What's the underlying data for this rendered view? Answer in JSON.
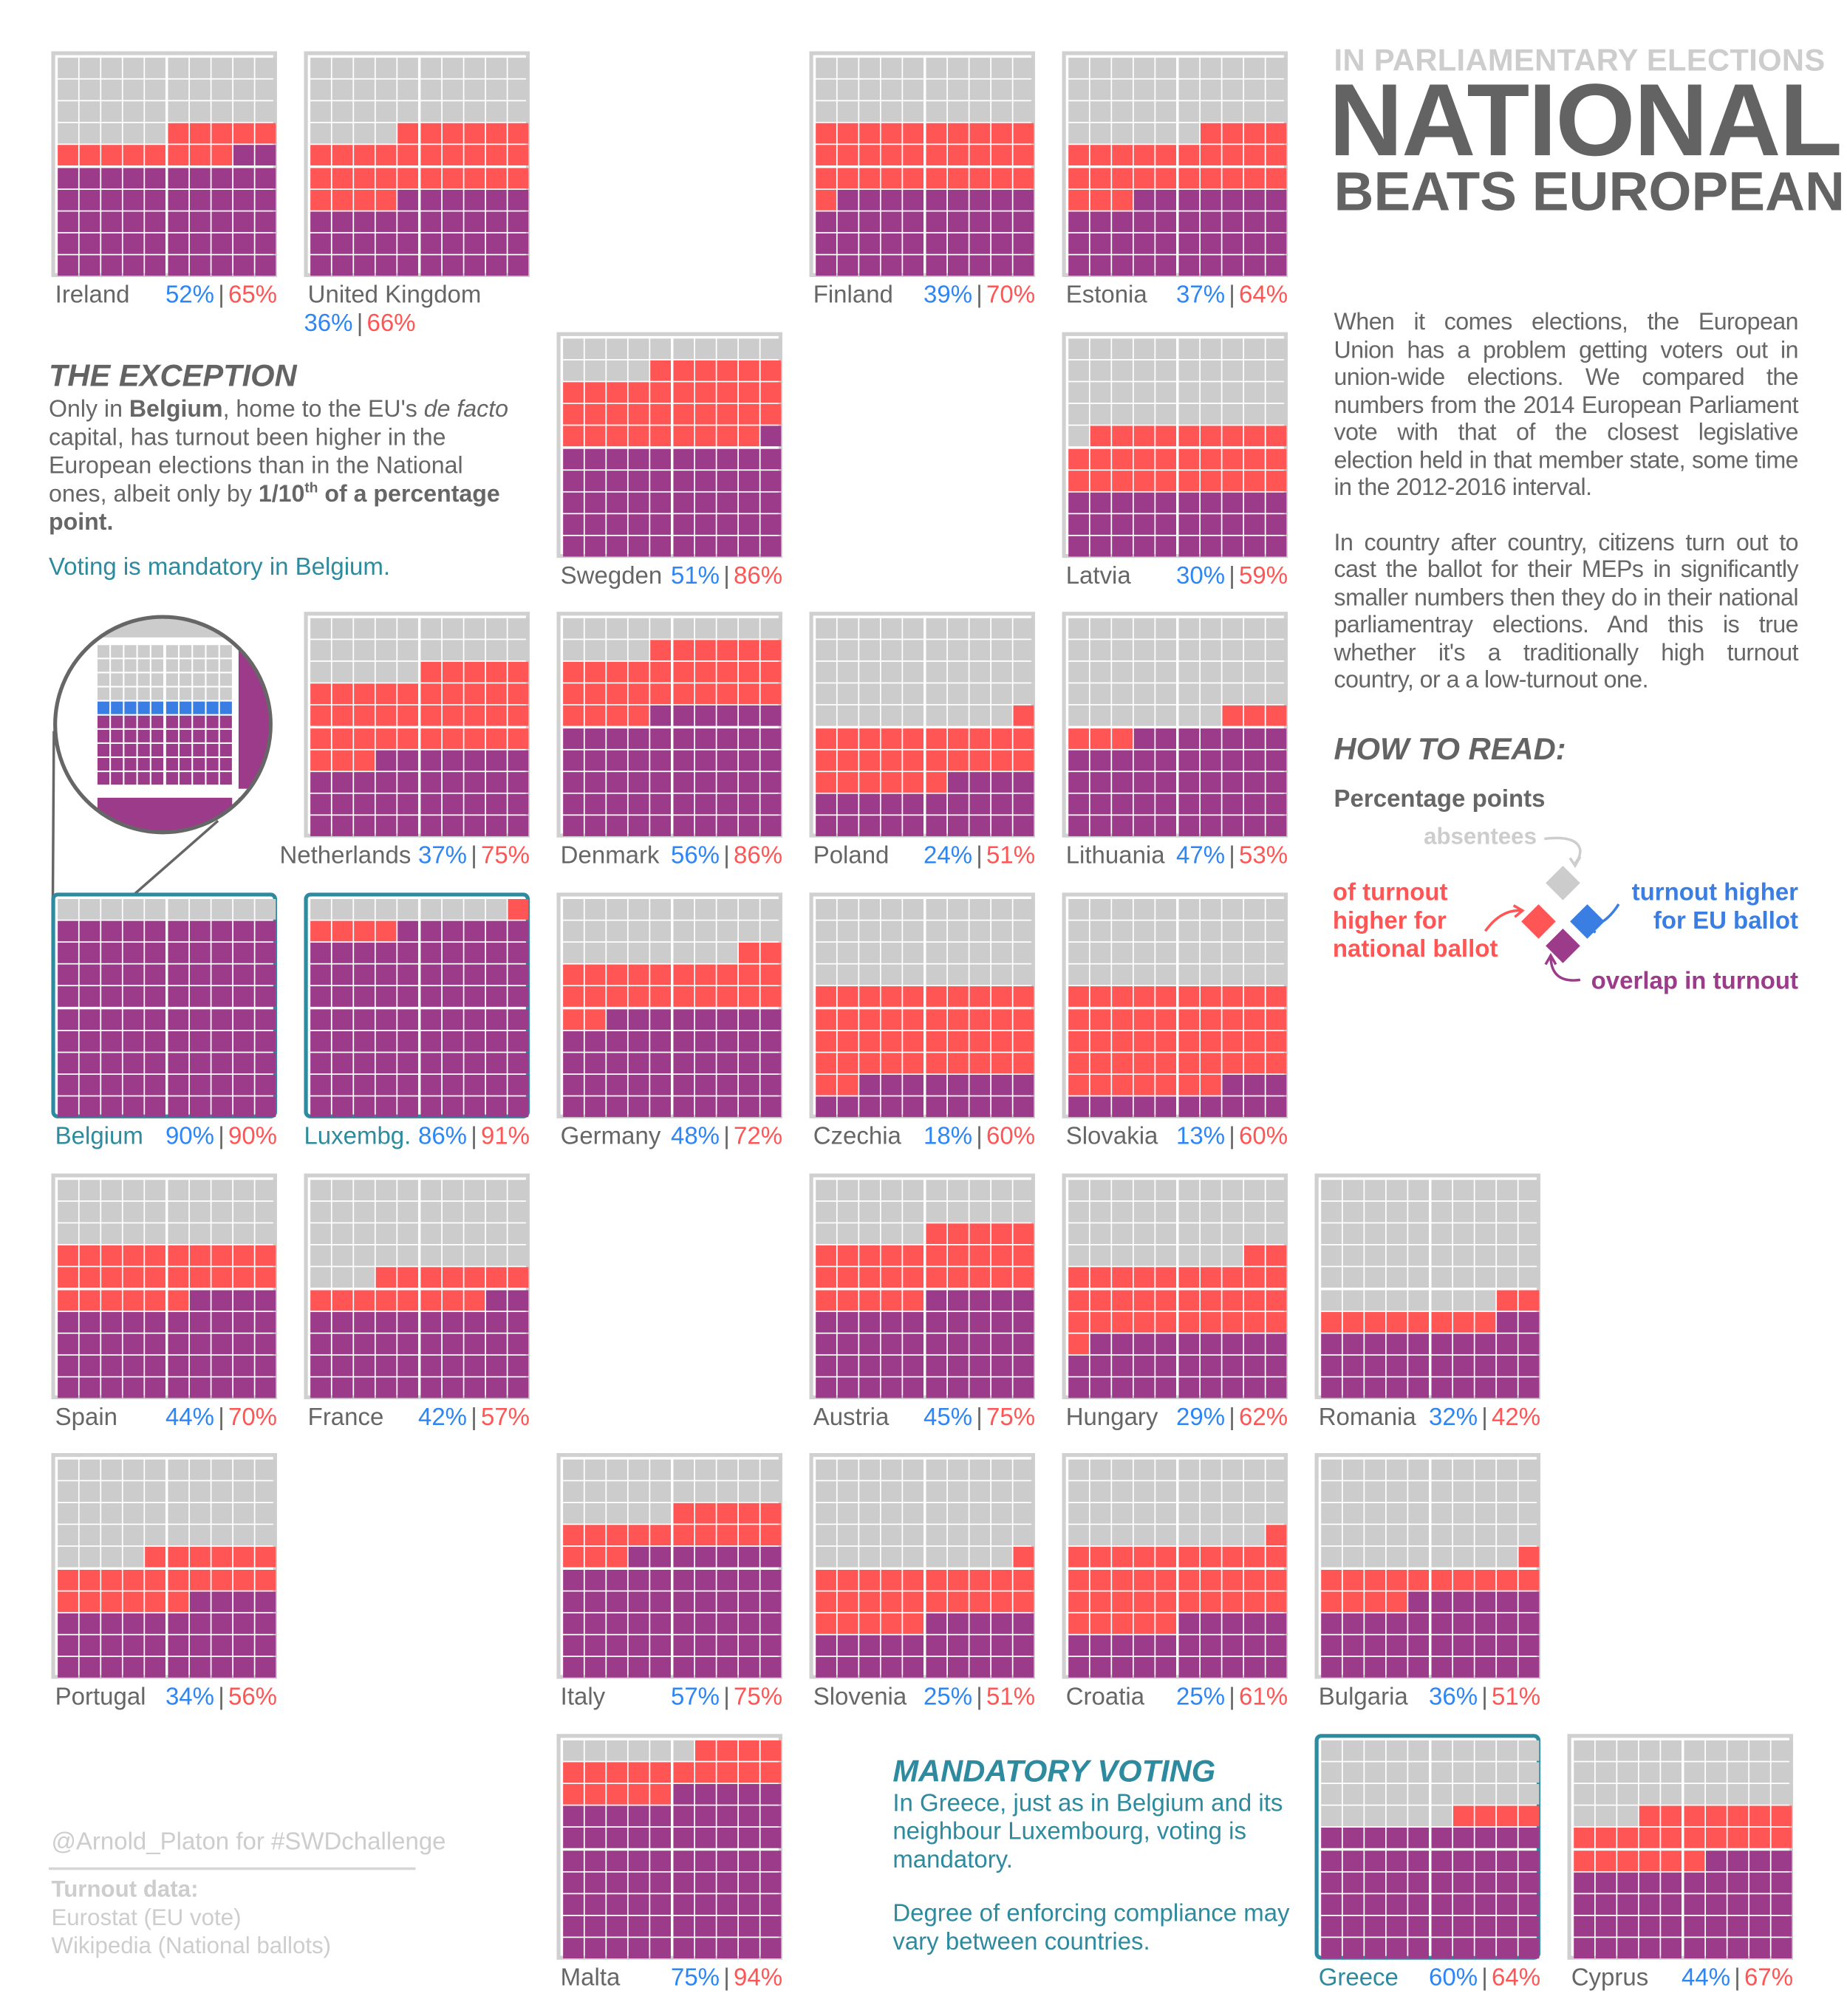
{
  "header": {
    "kicker": "IN PARLIAMENTARY ELECTIONS",
    "title_line1": "NATIONAL",
    "title_line2": "BEATS EUROPEAN"
  },
  "intro": {
    "p1": "When it comes elections, the European Union has a problem getting voters out in union-wide elections. We compared the numbers from the 2014 European Parliament vote with that of the closest legislative election held in that member state, some time in the 2012-2016 interval.",
    "p2": "In country after country, citizens turn out to cast the ballot for their MEPs in significantly smaller numbers then they do in their national parliamentray elections. And this is true whether it's a traditionally high turnout country, or a a low-turnout one."
  },
  "how_to_read": {
    "heading": "HOW TO READ:",
    "subheading": "Percentage points",
    "absentees": "absentees",
    "national_higher": [
      "of turnout",
      "higher for",
      "national ballot"
    ],
    "eu_higher": [
      "turnout higher",
      "for EU ballot"
    ],
    "overlap": "overlap in turnout"
  },
  "exception": {
    "heading": "THE EXCEPTION",
    "t1": "Only in ",
    "t2": "Belgium",
    "t3": ", home to the EU's ",
    "t4": "de facto",
    "t5": " capital, has turnout been higher in the European elections than in the National ones, albeit only by ",
    "t6": "1/10",
    "t7": "th",
    "t8": " of a percentage point.",
    "note": "Voting is mandatory in Belgium."
  },
  "mandatory": {
    "heading": "MANDATORY VOTING",
    "p1": "In Greece, just as in Belgium and its neighbour Luxembourg, voting is mandatory.",
    "p2": "Degree of enforcing compliance may vary between countries."
  },
  "footer": {
    "credit": "@Arnold_Platon for #SWDchallenge",
    "sources_heading": "Turnout data:",
    "source1": "Eurostat (EU vote)",
    "source2": "Wikipedia (National ballots)"
  },
  "colors": {
    "absentees": "#cccccc",
    "national_higher": "#ff5555",
    "eu_higher": "#3a7de3",
    "overlap": "#9c3b8a",
    "mandatory": "#2e8a9e",
    "eu_text": "#2e86f5"
  },
  "chart_data": {
    "type": "waffle",
    "units": "percent turnout",
    "separator": "|",
    "countries": [
      {
        "name": "Ireland",
        "eu": 52,
        "national": 65,
        "mandatory": false
      },
      {
        "name": "United Kingdom",
        "eu": 36,
        "national": 66,
        "mandatory": false
      },
      {
        "name": "Finland",
        "eu": 39,
        "national": 70,
        "mandatory": false
      },
      {
        "name": "Estonia",
        "eu": 37,
        "national": 64,
        "mandatory": false
      },
      {
        "name": "Swegden",
        "eu": 51,
        "national": 86,
        "mandatory": false
      },
      {
        "name": "Latvia",
        "eu": 30,
        "national": 59,
        "mandatory": false
      },
      {
        "name": "Netherlands",
        "eu": 37,
        "national": 75,
        "mandatory": false
      },
      {
        "name": "Denmark",
        "eu": 56,
        "national": 86,
        "mandatory": false
      },
      {
        "name": "Poland",
        "eu": 24,
        "national": 51,
        "mandatory": false
      },
      {
        "name": "Lithuania",
        "eu": 47,
        "national": 53,
        "mandatory": false
      },
      {
        "name": "Belgium",
        "eu": 90,
        "national": 90,
        "mandatory": true
      },
      {
        "name": "Luxembg.",
        "eu": 86,
        "national": 91,
        "mandatory": true
      },
      {
        "name": "Germany",
        "eu": 48,
        "national": 72,
        "mandatory": false
      },
      {
        "name": "Czechia",
        "eu": 18,
        "national": 60,
        "mandatory": false
      },
      {
        "name": "Slovakia",
        "eu": 13,
        "national": 60,
        "mandatory": false
      },
      {
        "name": "Spain",
        "eu": 44,
        "national": 70,
        "mandatory": false
      },
      {
        "name": "France",
        "eu": 42,
        "national": 57,
        "mandatory": false
      },
      {
        "name": "Austria",
        "eu": 45,
        "national": 75,
        "mandatory": false
      },
      {
        "name": "Hungary",
        "eu": 29,
        "national": 62,
        "mandatory": false
      },
      {
        "name": "Romania",
        "eu": 32,
        "national": 42,
        "mandatory": false
      },
      {
        "name": "Portugal",
        "eu": 34,
        "national": 56,
        "mandatory": false
      },
      {
        "name": "Italy",
        "eu": 57,
        "national": 75,
        "mandatory": false
      },
      {
        "name": "Slovenia",
        "eu": 25,
        "national": 51,
        "mandatory": false
      },
      {
        "name": "Croatia",
        "eu": 25,
        "national": 61,
        "mandatory": false
      },
      {
        "name": "Bulgaria",
        "eu": 36,
        "national": 51,
        "mandatory": false
      },
      {
        "name": "Malta",
        "eu": 75,
        "national": 94,
        "mandatory": false
      },
      {
        "name": "Greece",
        "eu": 60,
        "national": 64,
        "mandatory": true
      },
      {
        "name": "Cyprus",
        "eu": 44,
        "national": 67,
        "mandatory": false
      }
    ]
  }
}
